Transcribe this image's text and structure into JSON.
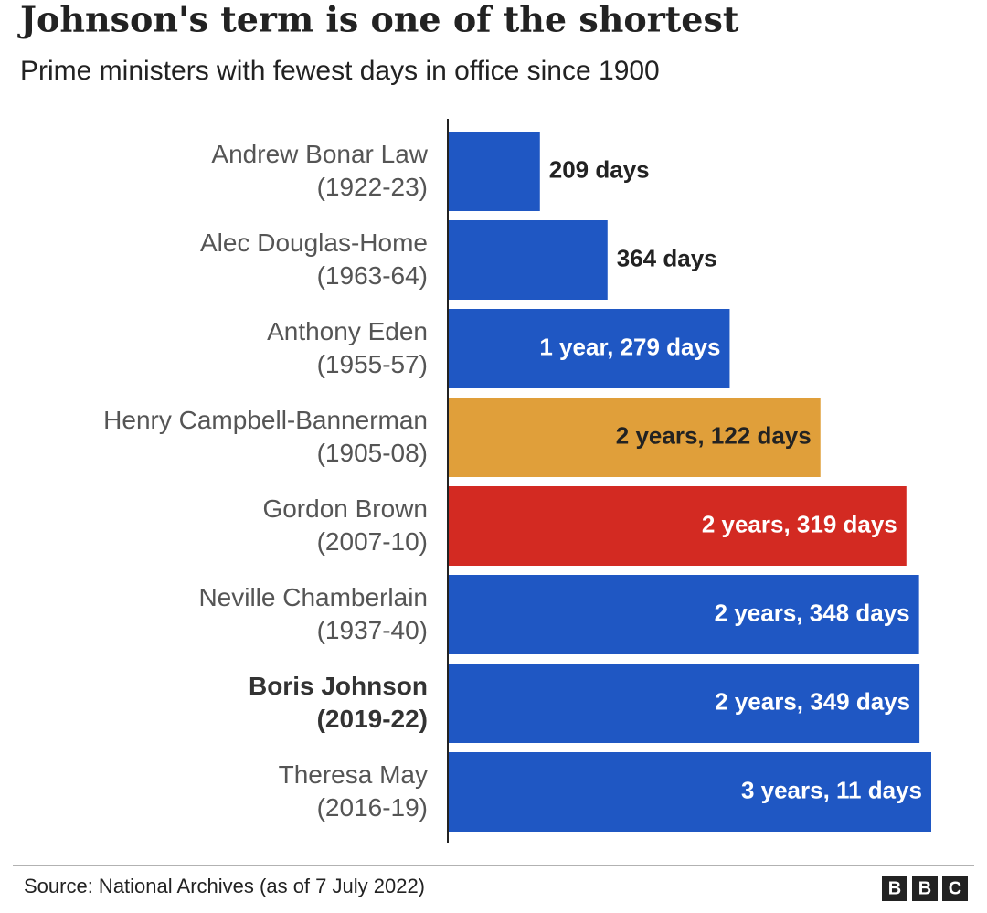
{
  "chart_data": {
    "type": "hbar",
    "title": "Johnson's term is one of the shortest",
    "subtitle": "Prime ministers with fewest days in office since 1900",
    "categories": [
      "Andrew Bonar Law",
      "Alec Douglas-Home",
      "Anthony Eden",
      "Henry Campbell-Bannerman",
      "Gordon Brown",
      "Neville Chamberlain",
      "Boris Johnson",
      "Theresa May"
    ],
    "terms": [
      "(1922-23)",
      "(1963-64)",
      "(1955-57)",
      "(1905-08)",
      "(2007-10)",
      "(1937-40)",
      "(2019-22)",
      "(2016-19)"
    ],
    "values": [
      209,
      364,
      644,
      852,
      1049,
      1078,
      1079,
      1106
    ],
    "value_labels": [
      "209 days",
      "364 days",
      "1 year, 279 days",
      "2 years, 122 days",
      "2 years, 319 days",
      "2 years, 348 days",
      "2 years, 349 days",
      "3 years, 11 days"
    ],
    "colors": [
      "#1f57c3",
      "#1f57c3",
      "#1f57c3",
      "#e09f3a",
      "#d32a22",
      "#1f57c3",
      "#1f57c3",
      "#1f57c3"
    ],
    "bold_index": 6,
    "source": "Source: National Archives (as of 7 July 2022)",
    "logo": [
      "B",
      "B",
      "C"
    ]
  }
}
